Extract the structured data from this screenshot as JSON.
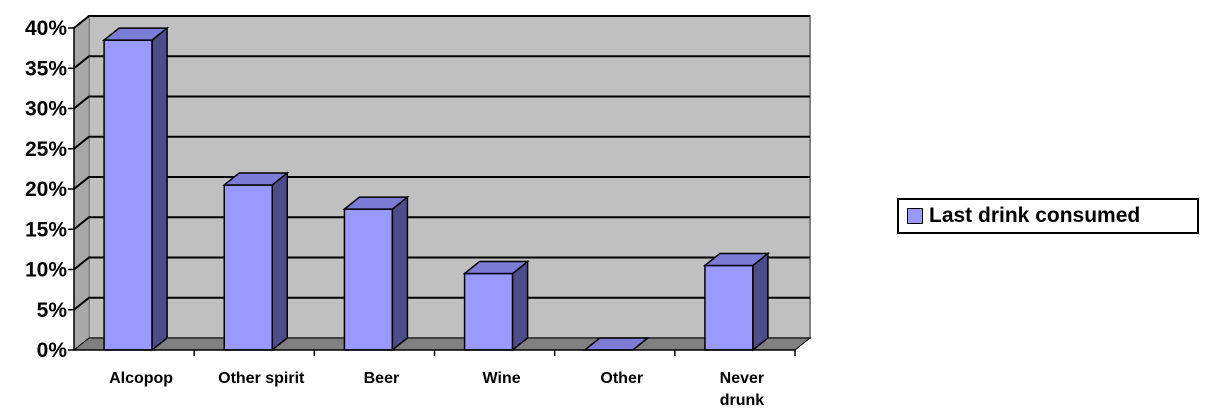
{
  "chart_data": {
    "type": "bar",
    "categories": [
      "Alcopop",
      "Other spirit",
      "Beer",
      "Wine",
      "Other",
      "Never drunk"
    ],
    "series": [
      {
        "name": "Last drink consumed",
        "values": [
          38.5,
          20.5,
          17.5,
          9.5,
          0,
          10.5
        ]
      }
    ],
    "ylim": [
      0,
      40
    ],
    "ytick_step": 5,
    "ytick_format": "percent",
    "grid": true,
    "legend_position": "right",
    "colors": {
      "bar_front": "#9999ff",
      "bar_side": "#4d4d8c",
      "bar_top": "#7c7cd6",
      "plot_wall": "#c0c0c0",
      "floor": "#808080"
    }
  }
}
